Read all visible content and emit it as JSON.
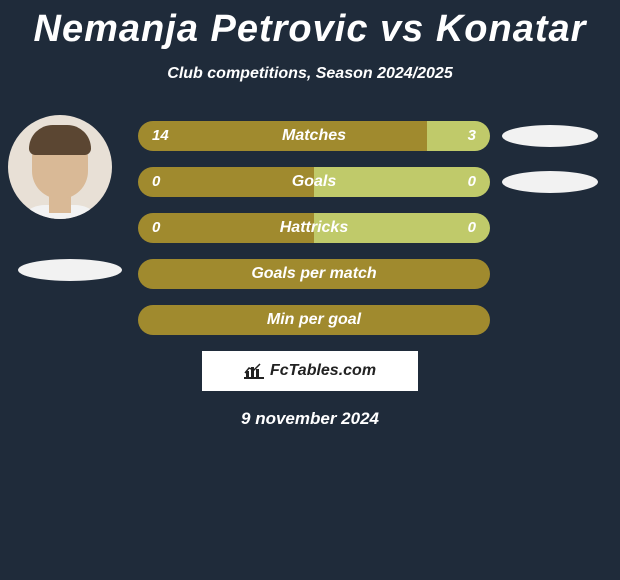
{
  "title": "Nemanja Petrovic vs Konatar",
  "subtitle": "Club competitions, Season 2024/2025",
  "date": "9 november 2024",
  "badge_text": "FcTables.com",
  "colors": {
    "background": "#1f2b3a",
    "player1": "#a08a2e",
    "player2": "#c0ca6a",
    "text": "#ffffff"
  },
  "bars": [
    {
      "label": "Matches",
      "left_val": "14",
      "right_val": "3",
      "left_pct": 82,
      "right_pct": 18,
      "show_vals": true
    },
    {
      "label": "Goals",
      "left_val": "0",
      "right_val": "0",
      "left_pct": 50,
      "right_pct": 50,
      "show_vals": true
    },
    {
      "label": "Hattricks",
      "left_val": "0",
      "right_val": "0",
      "left_pct": 50,
      "right_pct": 50,
      "show_vals": true
    },
    {
      "label": "Goals per match",
      "left_val": "",
      "right_val": "",
      "left_pct": 100,
      "right_pct": 0,
      "show_vals": false
    },
    {
      "label": "Min per goal",
      "left_val": "",
      "right_val": "",
      "left_pct": 100,
      "right_pct": 0,
      "show_vals": false
    }
  ]
}
